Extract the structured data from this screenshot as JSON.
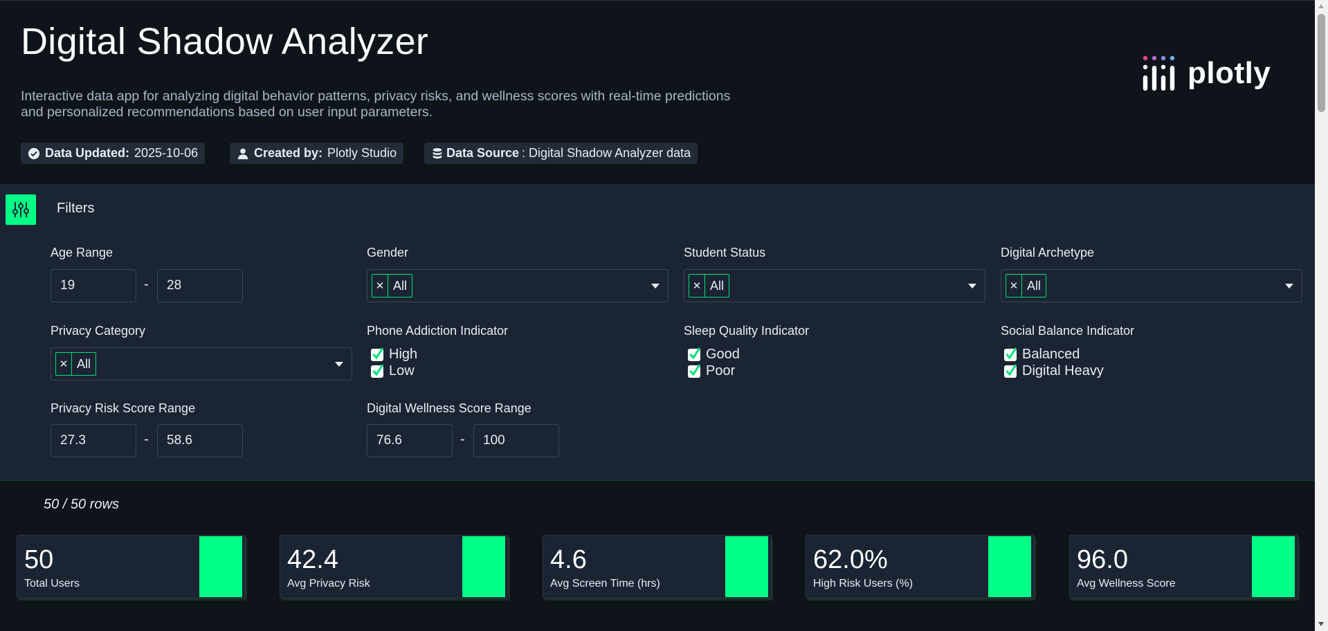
{
  "header": {
    "title": "Digital Shadow Analyzer",
    "subtitle": "Interactive data app for analyzing digital behavior patterns, privacy risks, and wellness scores with real-time predictions and personalized recommendations based on user input parameters.",
    "meta": [
      {
        "label": "Data Updated:",
        "value": "2025-10-06",
        "icon": "check-circle-icon"
      },
      {
        "label": "Created by:",
        "value": "Plotly Studio",
        "icon": "user-icon"
      },
      {
        "label": "Data Source",
        "value": ": Digital Shadow Analyzer data",
        "icon": "database-icon"
      }
    ],
    "logo_text": "plotly"
  },
  "filters": {
    "title": "Filters",
    "age_range": {
      "label": "Age Range",
      "min": "19",
      "max": "28"
    },
    "gender": {
      "label": "Gender",
      "selected": "All"
    },
    "student_status": {
      "label": "Student Status",
      "selected": "All"
    },
    "digital_archetype": {
      "label": "Digital Archetype",
      "selected": "All"
    },
    "privacy_category": {
      "label": "Privacy Category",
      "selected": "All"
    },
    "phone_addiction": {
      "label": "Phone Addiction Indicator",
      "options": [
        "High",
        "Low"
      ]
    },
    "sleep_quality": {
      "label": "Sleep Quality Indicator",
      "options": [
        "Good",
        "Poor"
      ]
    },
    "social_balance": {
      "label": "Social Balance Indicator",
      "options": [
        "Balanced",
        "Digital Heavy"
      ]
    },
    "privacy_risk_range": {
      "label": "Privacy Risk Score Range",
      "min": "27.3",
      "max": "58.6"
    },
    "wellness_range": {
      "label": "Digital Wellness Score Range",
      "min": "76.6",
      "max": "100"
    },
    "range_separator": "-"
  },
  "summary": {
    "rows": "50 / 50 rows",
    "cards": [
      {
        "value": "50",
        "caption": "Total Users"
      },
      {
        "value": "42.4",
        "caption": "Avg Privacy Risk"
      },
      {
        "value": "4.6",
        "caption": "Avg Screen Time (hrs)"
      },
      {
        "value": "62.0%",
        "caption": "High Risk Users (%)"
      },
      {
        "value": "96.0",
        "caption": "Avg Wellness Score"
      }
    ]
  },
  "colors": {
    "accent": "#00ff87",
    "background": "#0f141a",
    "panel": "#1b2433"
  }
}
